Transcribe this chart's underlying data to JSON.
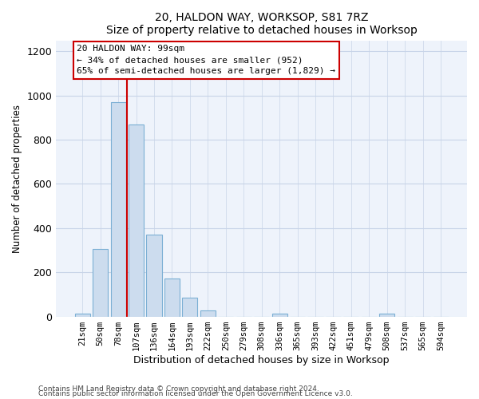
{
  "title": "20, HALDON WAY, WORKSOP, S81 7RZ",
  "subtitle": "Size of property relative to detached houses in Worksop",
  "xlabel": "Distribution of detached houses by size in Worksop",
  "ylabel": "Number of detached properties",
  "bar_color": "#ccdcee",
  "bar_edge_color": "#7bafd4",
  "background_color": "#eef3fb",
  "grid_color": "#c8d4e8",
  "annotation_line_color": "#cc0000",
  "annotation_box_color": "#cc0000",
  "categories": [
    "21sqm",
    "50sqm",
    "78sqm",
    "107sqm",
    "136sqm",
    "164sqm",
    "193sqm",
    "222sqm",
    "250sqm",
    "279sqm",
    "308sqm",
    "336sqm",
    "365sqm",
    "393sqm",
    "422sqm",
    "451sqm",
    "479sqm",
    "508sqm",
    "537sqm",
    "565sqm",
    "594sqm"
  ],
  "values": [
    12,
    305,
    970,
    868,
    370,
    172,
    85,
    27,
    0,
    0,
    0,
    12,
    0,
    0,
    0,
    0,
    0,
    12,
    0,
    0,
    0
  ],
  "ylim": [
    0,
    1250
  ],
  "yticks": [
    0,
    200,
    400,
    600,
    800,
    1000,
    1200
  ],
  "red_line_x": 2.5,
  "annotation_text_line1": "20 HALDON WAY: 99sqm",
  "annotation_text_line2": "← 34% of detached houses are smaller (952)",
  "annotation_text_line3": "65% of semi-detached houses are larger (1,829) →",
  "footnote1": "Contains HM Land Registry data © Crown copyright and database right 2024.",
  "footnote2": "Contains public sector information licensed under the Open Government Licence v3.0."
}
